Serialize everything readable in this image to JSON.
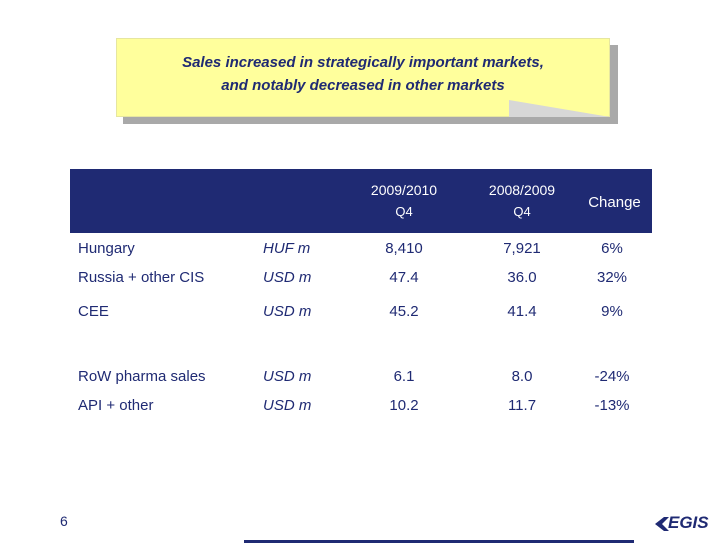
{
  "callout": {
    "line1": "Sales increased in strategically important markets,",
    "line2": "and notably decreased in other markets"
  },
  "table": {
    "headers": [
      {
        "top": "2009/2010",
        "sub": "Q4"
      },
      {
        "top": "2008/2009",
        "sub": "Q4"
      },
      {
        "top": "Change",
        "sub": ""
      }
    ],
    "rows": [
      {
        "label": "Hungary",
        "unit": "HUF m",
        "v2010": "8,410",
        "v2009": "7,921",
        "change": "6%"
      },
      {
        "label": "Russia + other CIS",
        "unit": "USD m",
        "v2010": "47.4",
        "v2009": "36.0",
        "change": "32%"
      },
      {
        "label": "CEE",
        "unit": "USD m",
        "v2010": "45.2",
        "v2009": "41.4",
        "change": "9%"
      },
      {
        "label": "RoW pharma sales",
        "unit": "USD m",
        "v2010": "6.1",
        "v2009": "8.0",
        "change": "-24%"
      },
      {
        "label": "API + other",
        "unit": "USD m",
        "v2010": "10.2",
        "v2009": "11.7",
        "change": "-13%"
      }
    ]
  },
  "footer": {
    "page_number": "6",
    "logo_text": "EGIS"
  },
  "colors": {
    "navy": "#1f2a73",
    "callout_yellow": "#ffff9c"
  }
}
